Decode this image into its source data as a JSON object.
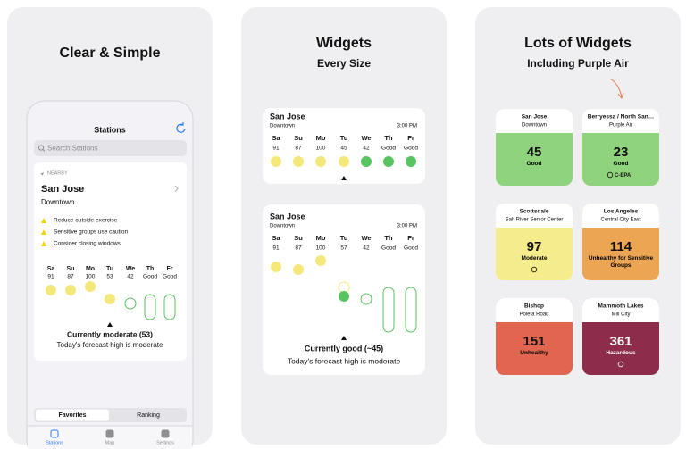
{
  "panels": [
    {
      "title": "Clear & Simple",
      "screen": {
        "header": "Stations",
        "search": "Search Stations",
        "nearby": "NEARBY",
        "station": "San Jose",
        "area": "Downtown",
        "tips": [
          "Reduce outside exercise",
          "Sensitive groups use caution",
          "Consider closing windows"
        ],
        "days": [
          "Sa",
          "Su",
          "Mo",
          "Tu",
          "We",
          "Th",
          "Fr"
        ],
        "values": [
          91,
          87,
          100,
          53,
          42,
          "Good",
          "Good"
        ],
        "current": "Currently moderate (53)",
        "forecast": "Today's forecast high is moderate",
        "segments": [
          "Favorites",
          "Ranking"
        ],
        "tabs": [
          "Stations",
          "Map",
          "Settings"
        ]
      }
    },
    {
      "title": "Widgets",
      "subtitle": "Every Size",
      "widgets": [
        {
          "station": "San Jose",
          "area": "Downtown",
          "time": "3:00 PM",
          "days": [
            "Sa",
            "Su",
            "Mo",
            "Tu",
            "We",
            "Th",
            "Fr"
          ],
          "values": [
            91,
            87,
            100,
            45,
            42,
            "Good",
            "Good"
          ]
        },
        {
          "station": "San Jose",
          "area": "Downtown",
          "time": "3:00 PM",
          "days": [
            "Sa",
            "Su",
            "Mo",
            "Tu",
            "We",
            "Th",
            "Fr"
          ],
          "values": [
            91,
            87,
            100,
            57,
            42,
            "Good",
            "Good"
          ],
          "current": "Currently good (~45)",
          "forecast": "Today's forecast high is moderate"
        }
      ]
    },
    {
      "title": "Lots of Widgets",
      "subtitle": "Including Purple Air",
      "cards": [
        {
          "name": "San Jose",
          "area": "Downtown",
          "aqi": 45,
          "label": "Good",
          "color": "#8fd47c"
        },
        {
          "name": "Berryessa / North San…",
          "area": "Purple Air",
          "aqi": 23,
          "label": "Good",
          "source": "C-EPA",
          "color": "#8fd47c"
        },
        {
          "name": "Scottsdale",
          "area": "Salt River Senior Center",
          "aqi": 97,
          "label": "Moderate",
          "color": "#f5ec8c"
        },
        {
          "name": "Los Angeles",
          "area": "Central City East",
          "aqi": 114,
          "label": "Unhealthy for Sensitive Groups",
          "color": "#eba553"
        },
        {
          "name": "Bishop",
          "area": "Poleta Road",
          "aqi": 151,
          "label": "Unhealthy",
          "color": "#e2654f"
        },
        {
          "name": "Mammoth Lakes",
          "area": "Mill City",
          "aqi": 361,
          "label": "Hazardous",
          "color": "#8e2d4b"
        }
      ]
    }
  ]
}
